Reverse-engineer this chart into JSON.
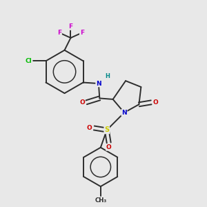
{
  "bg_color": "#e8e8e8",
  "bond_color": "#2d2d2d",
  "atom_colors": {
    "F": "#cc00cc",
    "Cl": "#00bb00",
    "N": "#0000cc",
    "O": "#cc0000",
    "S": "#cccc00",
    "H": "#008888",
    "C": "#2d2d2d"
  }
}
